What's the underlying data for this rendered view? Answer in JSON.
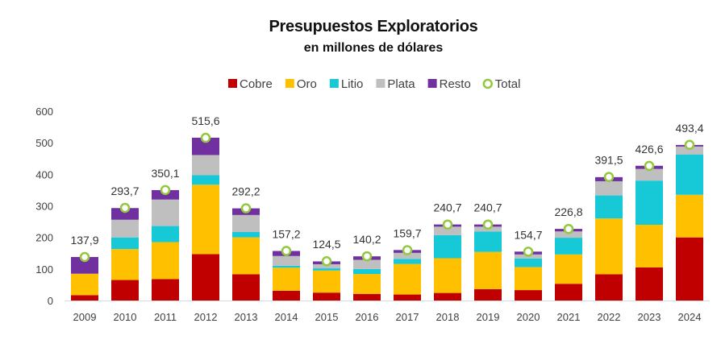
{
  "chart_data": {
    "type": "bar",
    "stacked": true,
    "title": "Presupuestos Exploratorios",
    "subtitle": "en millones de dólares",
    "categories": [
      "2009",
      "2010",
      "2011",
      "2012",
      "2013",
      "2014",
      "2015",
      "2016",
      "2017",
      "2018",
      "2019",
      "2020",
      "2021",
      "2022",
      "2023",
      "2024"
    ],
    "series": [
      {
        "name": "Cobre",
        "color": "#C00000",
        "values": [
          17,
          65,
          68,
          147,
          83,
          31,
          25,
          21,
          19,
          24,
          36,
          33,
          53,
          83,
          105,
          200
        ]
      },
      {
        "name": "Oro",
        "color": "#FFC000",
        "values": [
          68,
          98,
          117,
          220,
          117,
          73,
          70,
          63,
          97,
          110,
          118,
          73,
          93,
          177,
          135,
          135
        ]
      },
      {
        "name": "Litio",
        "color": "#17C9D6",
        "values": [
          0,
          37,
          51,
          30,
          17,
          6,
          7,
          16,
          16,
          73,
          65,
          27,
          53,
          73,
          140,
          128
        ]
      },
      {
        "name": "Plata",
        "color": "#BFBFBF",
        "values": [
          0,
          56,
          84,
          64,
          54,
          31,
          13,
          29,
          19,
          27,
          15,
          13,
          20,
          45,
          37,
          25
        ]
      },
      {
        "name": "Resto",
        "color": "#7030A0",
        "values": [
          53,
          37,
          30,
          55,
          21,
          16,
          9,
          11,
          9,
          7,
          7,
          9,
          8,
          13,
          10,
          5
        ]
      }
    ],
    "totals": {
      "name": "Total",
      "values": [
        137.9,
        293.7,
        350.1,
        515.6,
        292.2,
        157.2,
        124.5,
        140.2,
        159.7,
        240.7,
        240.7,
        154.7,
        226.8,
        391.5,
        426.6,
        493.4
      ],
      "labels": [
        "137,9",
        "293,7",
        "350,1",
        "515,6",
        "292,2",
        "157,2",
        "124,5",
        "140,2",
        "159,7",
        "240,7",
        "240,7",
        "154,7",
        "226,8",
        "391,5",
        "426,6",
        "493,4"
      ],
      "marker_color": "#92C83E"
    },
    "ylim": [
      0,
      600
    ],
    "yticks": [
      0,
      100,
      200,
      300,
      400,
      500,
      600
    ],
    "grid": false,
    "legend_position": "top-center"
  }
}
